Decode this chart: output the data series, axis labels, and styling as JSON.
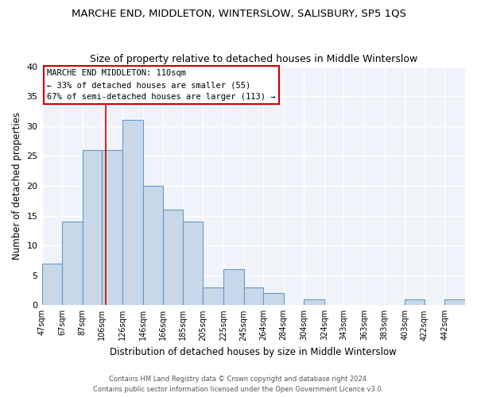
{
  "title": "MARCHE END, MIDDLETON, WINTERSLOW, SALISBURY, SP5 1QS",
  "subtitle": "Size of property relative to detached houses in Middle Winterslow",
  "xlabel": "Distribution of detached houses by size in Middle Winterslow",
  "ylabel": "Number of detached properties",
  "bar_color": "#c8d8e8",
  "bar_edge_color": "#6699cc",
  "background_color": "#ffffff",
  "plot_bg_color": "#f0f4fa",
  "bin_labels": [
    "47sqm",
    "67sqm",
    "87sqm",
    "106sqm",
    "126sqm",
    "146sqm",
    "166sqm",
    "185sqm",
    "205sqm",
    "225sqm",
    "245sqm",
    "264sqm",
    "284sqm",
    "304sqm",
    "324sqm",
    "343sqm",
    "363sqm",
    "383sqm",
    "403sqm",
    "422sqm",
    "442sqm"
  ],
  "bin_edges": [
    47,
    67,
    87,
    106,
    126,
    146,
    166,
    185,
    205,
    225,
    245,
    264,
    284,
    304,
    324,
    343,
    363,
    383,
    403,
    422,
    442,
    462
  ],
  "bar_heights": [
    7,
    14,
    26,
    26,
    31,
    20,
    16,
    14,
    3,
    6,
    3,
    2,
    0,
    1,
    0,
    0,
    0,
    0,
    1,
    0,
    1
  ],
  "ylim": [
    0,
    40
  ],
  "yticks": [
    0,
    5,
    10,
    15,
    20,
    25,
    30,
    35,
    40
  ],
  "property_line_x": 110,
  "annotation_title": "MARCHE END MIDDLETON: 110sqm",
  "annotation_line1": "← 33% of detached houses are smaller (55)",
  "annotation_line2": "67% of semi-detached houses are larger (113) →",
  "footer_line1": "Contains HM Land Registry data © Crown copyright and database right 2024.",
  "footer_line2": "Contains public sector information licensed under the Open Government Licence v3.0.",
  "grid_color": "#ffffff",
  "red_line_color": "#cc0000"
}
